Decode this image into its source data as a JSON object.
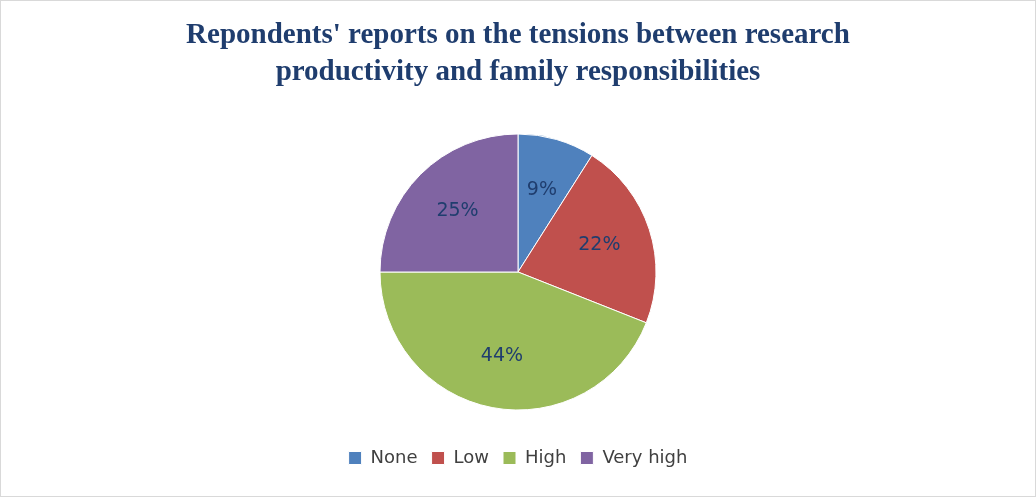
{
  "chart_data": {
    "type": "pie",
    "title": "Repondents' reports on the tensions between research productivity and family responsibilities",
    "categories": [
      "None",
      "Low",
      "High",
      "Very high"
    ],
    "values": [
      9,
      22,
      44,
      25
    ],
    "colors": [
      "#4f81bd",
      "#c0504d",
      "#9bbb59",
      "#8064a2"
    ],
    "value_labels": [
      "9%",
      "22%",
      "44%",
      "25%"
    ],
    "legend": "bottom"
  }
}
